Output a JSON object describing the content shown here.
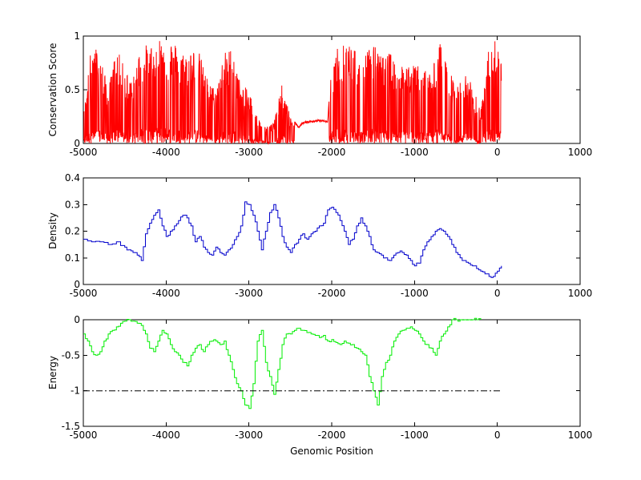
{
  "chart_data": [
    {
      "type": "line",
      "ylabel": "Conservation Score",
      "xlabel": "",
      "xlim": [
        -5000,
        1000
      ],
      "ylim": [
        0,
        1
      ],
      "xticks": [
        "-5000",
        "-4000",
        "-3000",
        "-2000",
        "-1000",
        "0",
        "1000"
      ],
      "yticks": [
        "0",
        "0.5",
        "1"
      ],
      "series": [
        {
          "color": "#ff0000",
          "style": "spiky",
          "x": [
            -5000,
            -4900,
            -4800,
            -4700,
            -4600,
            -4500,
            -4400,
            -4300,
            -4200,
            -4100,
            -4000,
            -3900,
            -3800,
            -3700,
            -3600,
            -3500,
            -3400,
            -3300,
            -3200,
            -3100,
            -3000,
            -2900,
            -2800,
            -2700,
            -2600,
            -2500,
            -2450,
            -2400,
            -2350,
            -2300,
            -2200,
            -2100,
            -2050,
            -2000,
            -1950,
            -1900,
            -1800,
            -1700,
            -1600,
            -1500,
            -1400,
            -1300,
            -1200,
            -1100,
            -1000,
            -900,
            -800,
            -700,
            -600,
            -500,
            -400,
            -300,
            -200,
            -100,
            0,
            50
          ],
          "values": [
            0.25,
            0.95,
            0.85,
            0.5,
            0.9,
            0.7,
            0.6,
            0.95,
            0.9,
            1.0,
            0.98,
            0.95,
            0.85,
            0.9,
            0.85,
            0.6,
            0.5,
            0.85,
            0.9,
            0.55,
            0.5,
            0.25,
            0.15,
            0.2,
            0.55,
            0.25,
            0.2,
            0.15,
            0.19,
            0.2,
            0.21,
            0.21,
            0.2,
            0.75,
            0.85,
            0.95,
            0.95,
            0.85,
            0.9,
            0.95,
            0.8,
            0.85,
            0.75,
            0.7,
            0.75,
            0.7,
            0.65,
            0.95,
            0.75,
            0.5,
            0.65,
            0.55,
            0.3,
            0.95,
            0.98,
            0.95
          ]
        }
      ]
    },
    {
      "type": "line",
      "ylabel": "Density",
      "xlabel": "",
      "xlim": [
        -5000,
        1000
      ],
      "ylim": [
        0,
        0.4
      ],
      "xticks": [
        "-5000",
        "-4000",
        "-3000",
        "-2000",
        "-1000",
        "0",
        "1000"
      ],
      "yticks": [
        "0",
        "0.1",
        "0.2",
        "0.3",
        "0.4"
      ],
      "series": [
        {
          "color": "#0000cc",
          "style": "step",
          "x": [
            -5000,
            -4900,
            -4800,
            -4700,
            -4600,
            -4500,
            -4450,
            -4400,
            -4350,
            -4300,
            -4250,
            -4200,
            -4150,
            -4100,
            -4050,
            -4000,
            -3950,
            -3900,
            -3850,
            -3800,
            -3750,
            -3700,
            -3650,
            -3600,
            -3550,
            -3500,
            -3450,
            -3400,
            -3350,
            -3300,
            -3250,
            -3200,
            -3150,
            -3100,
            -3050,
            -3000,
            -2950,
            -2900,
            -2850,
            -2800,
            -2750,
            -2700,
            -2650,
            -2600,
            -2550,
            -2500,
            -2450,
            -2400,
            -2350,
            -2300,
            -2250,
            -2200,
            -2150,
            -2100,
            -2050,
            -2000,
            -1950,
            -1900,
            -1850,
            -1800,
            -1750,
            -1700,
            -1650,
            -1600,
            -1550,
            -1500,
            -1450,
            -1400,
            -1350,
            -1300,
            -1250,
            -1200,
            -1150,
            -1100,
            -1050,
            -1000,
            -950,
            -900,
            -850,
            -800,
            -750,
            -700,
            -650,
            -600,
            -550,
            -500,
            -450,
            -400,
            -350,
            -300,
            -250,
            -200,
            -150,
            -100,
            -50,
            0,
            50
          ],
          "values": [
            0.17,
            0.16,
            0.16,
            0.15,
            0.16,
            0.14,
            0.13,
            0.12,
            0.11,
            0.09,
            0.19,
            0.23,
            0.26,
            0.28,
            0.22,
            0.18,
            0.2,
            0.22,
            0.24,
            0.26,
            0.25,
            0.22,
            0.16,
            0.18,
            0.14,
            0.12,
            0.11,
            0.14,
            0.12,
            0.11,
            0.13,
            0.15,
            0.18,
            0.22,
            0.31,
            0.3,
            0.26,
            0.2,
            0.13,
            0.2,
            0.27,
            0.3,
            0.25,
            0.18,
            0.14,
            0.12,
            0.15,
            0.17,
            0.19,
            0.17,
            0.19,
            0.2,
            0.22,
            0.23,
            0.28,
            0.29,
            0.27,
            0.24,
            0.2,
            0.15,
            0.17,
            0.22,
            0.25,
            0.22,
            0.18,
            0.13,
            0.12,
            0.11,
            0.1,
            0.09,
            0.11,
            0.12,
            0.12,
            0.11,
            0.09,
            0.07,
            0.08,
            0.13,
            0.16,
            0.18,
            0.2,
            0.21,
            0.2,
            0.18,
            0.15,
            0.12,
            0.1,
            0.09,
            0.08,
            0.07,
            0.06,
            0.05,
            0.04,
            0.03,
            0.03,
            0.05,
            0.07
          ]
        }
      ]
    },
    {
      "type": "line",
      "ylabel": "Energy",
      "xlabel": "Genomic Position",
      "xlim": [
        -5000,
        1000
      ],
      "ylim": [
        -1.5,
        0
      ],
      "xticks": [
        "-5000",
        "-4000",
        "-3000",
        "-2000",
        "-1000",
        "0",
        "1000"
      ],
      "yticks": [
        "-1.5",
        "-1",
        "-0.5",
        "0"
      ],
      "series": [
        {
          "color": "#00ee00",
          "style": "step",
          "x": [
            -5000,
            -4950,
            -4900,
            -4850,
            -4800,
            -4750,
            -4700,
            -4650,
            -4600,
            -4550,
            -4500,
            -4450,
            -4400,
            -4350,
            -4300,
            -4250,
            -4200,
            -4150,
            -4100,
            -4050,
            -4000,
            -3950,
            -3900,
            -3850,
            -3800,
            -3750,
            -3700,
            -3650,
            -3600,
            -3550,
            -3500,
            -3450,
            -3400,
            -3350,
            -3300,
            -3250,
            -3200,
            -3150,
            -3100,
            -3050,
            -3000,
            -2950,
            -2900,
            -2850,
            -2800,
            -2750,
            -2700,
            -2650,
            -2600,
            -2550,
            -2500,
            -2450,
            -2400,
            -2350,
            -2300,
            -2250,
            -2200,
            -2150,
            -2100,
            -2050,
            -2000,
            -1950,
            -1900,
            -1850,
            -1800,
            -1750,
            -1700,
            -1650,
            -1600,
            -1550,
            -1500,
            -1450,
            -1400,
            -1350,
            -1300,
            -1250,
            -1200,
            -1150,
            -1100,
            -1050,
            -1000,
            -950,
            -900,
            -850,
            -800,
            -750,
            -700,
            -650,
            -600,
            -550,
            -500,
            -450,
            -400,
            -350,
            -300,
            -250,
            -200
          ],
          "values": [
            -0.2,
            -0.3,
            -0.45,
            -0.5,
            -0.45,
            -0.3,
            -0.2,
            -0.15,
            -0.1,
            -0.05,
            -0.02,
            0,
            -0.02,
            -0.05,
            -0.08,
            -0.2,
            -0.4,
            -0.45,
            -0.3,
            -0.15,
            -0.2,
            -0.35,
            -0.45,
            -0.5,
            -0.6,
            -0.65,
            -0.5,
            -0.4,
            -0.35,
            -0.45,
            -0.35,
            -0.3,
            -0.3,
            -0.35,
            -0.3,
            -0.5,
            -0.7,
            -0.9,
            -1.0,
            -1.2,
            -1.25,
            -0.9,
            -0.3,
            -0.15,
            -0.6,
            -0.8,
            -1.05,
            -0.7,
            -0.35,
            -0.2,
            -0.2,
            -0.15,
            -0.12,
            -0.15,
            -0.18,
            -0.2,
            -0.22,
            -0.25,
            -0.22,
            -0.3,
            -0.28,
            -0.32,
            -0.35,
            -0.3,
            -0.33,
            -0.35,
            -0.4,
            -0.45,
            -0.5,
            -0.8,
            -1.0,
            -1.2,
            -0.8,
            -0.6,
            -0.5,
            -0.3,
            -0.2,
            -0.15,
            -0.12,
            -0.1,
            -0.15,
            -0.2,
            -0.3,
            -0.35,
            -0.4,
            -0.5,
            -0.3,
            -0.2,
            -0.1,
            0,
            0,
            0,
            0,
            0,
            0,
            0,
            0
          ]
        },
        {
          "color": "#000000",
          "style": "dashdot",
          "x": [
            -5000,
            50
          ],
          "values": [
            -1,
            -1
          ]
        }
      ]
    }
  ]
}
